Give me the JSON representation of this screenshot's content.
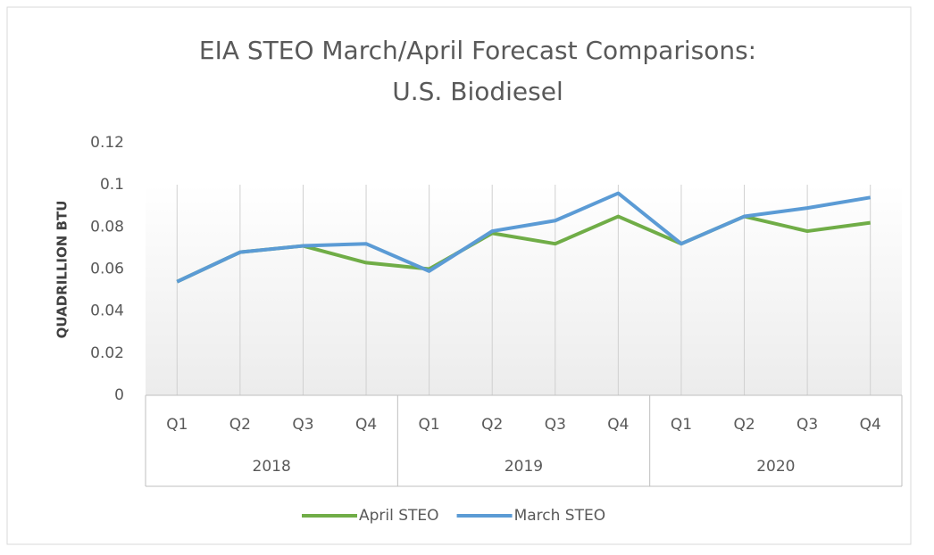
{
  "chart_data": {
    "type": "line",
    "title": [
      "EIA STEO March/April Forecast Comparisons:",
      "U.S. Biodiesel"
    ],
    "y_label": "QUADRILLION BTU",
    "category_groups": [
      {
        "name": "2018",
        "categories": [
          "Q1",
          "Q2",
          "Q3",
          "Q4"
        ]
      },
      {
        "name": "2019",
        "categories": [
          "Q1",
          "Q2",
          "Q3",
          "Q4"
        ]
      },
      {
        "name": "2020",
        "categories": [
          "Q1",
          "Q2",
          "Q3",
          "Q4"
        ]
      }
    ],
    "series": [
      {
        "name": "April STEO",
        "color": "#70ad47",
        "values": [
          0.054,
          0.068,
          0.071,
          0.063,
          0.06,
          0.077,
          0.072,
          0.085,
          0.072,
          0.085,
          0.078,
          0.082
        ]
      },
      {
        "name": "March STEO",
        "color": "#5b9bd5",
        "values": [
          0.054,
          0.068,
          0.071,
          0.072,
          0.059,
          0.078,
          0.083,
          0.096,
          0.072,
          0.085,
          0.089,
          0.094
        ]
      }
    ],
    "ylim": [
      0,
      0.12
    ],
    "yticks": [
      0,
      0.02,
      0.04,
      0.06,
      0.08,
      0.1,
      0.12
    ],
    "grid": false,
    "legend": "bottom"
  }
}
